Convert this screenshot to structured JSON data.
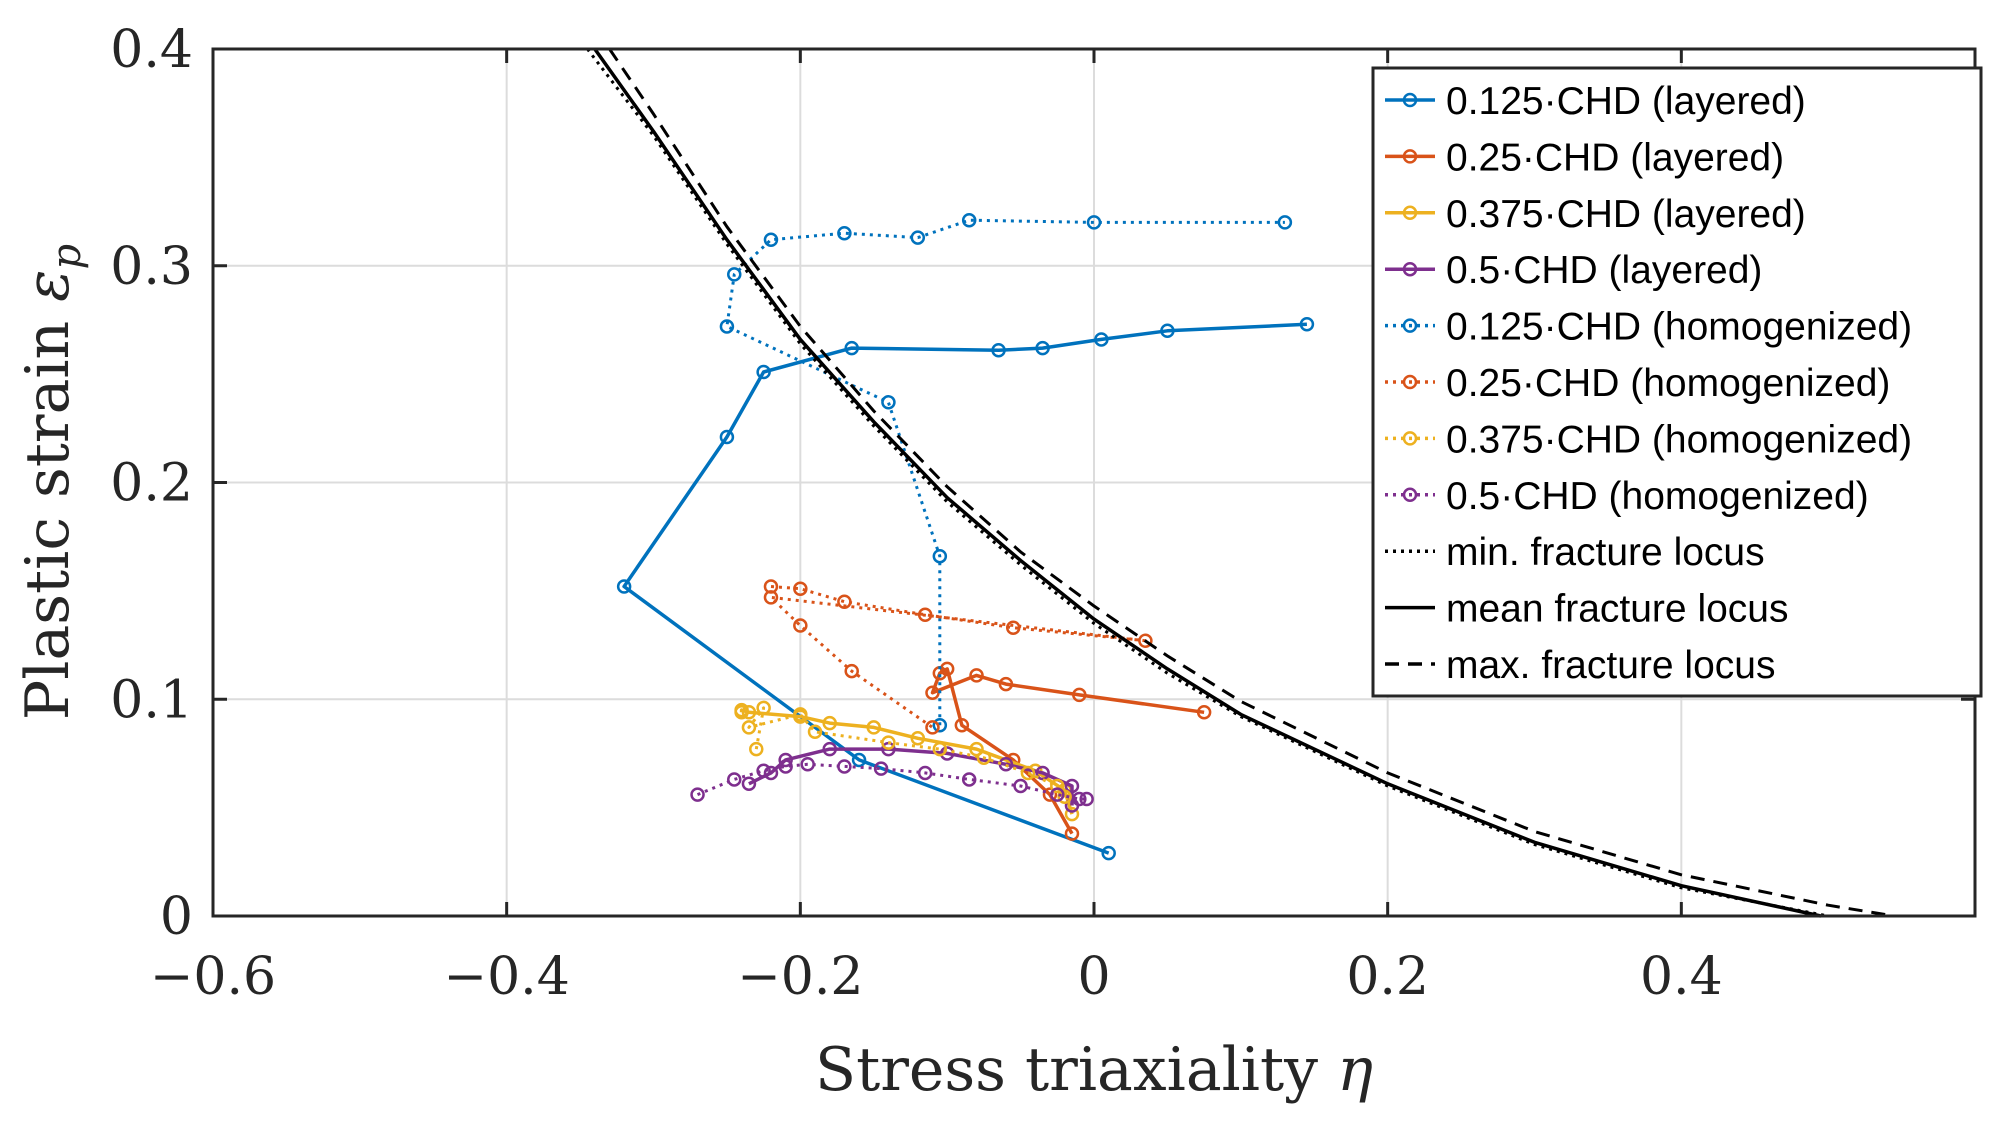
{
  "chart_data": {
    "type": "line",
    "xlabel": "Stress triaxiality",
    "xlabel_symbol": "η",
    "ylabel": "Plastic strain",
    "ylabel_symbol": "ε",
    "ylabel_subscript": "p",
    "xlim": [
      -0.6,
      0.6
    ],
    "ylim": [
      0,
      0.4
    ],
    "xticks": [
      -0.6,
      -0.4,
      -0.2,
      0,
      0.2,
      0.4
    ],
    "xtick_labels": [
      "−0.6",
      "−0.4",
      "−0.2",
      "0",
      "0.2",
      "0.4"
    ],
    "yticks": [
      0,
      0.1,
      0.2,
      0.3,
      0.4
    ],
    "ytick_labels": [
      "0",
      "0.1",
      "0.2",
      "0.3",
      "0.4"
    ],
    "grid": true,
    "legend_position": "top-right",
    "colors": {
      "blue": "#0072BD",
      "orange": "#D95319",
      "yellow": "#EDB120",
      "purple": "#7E2F8E",
      "black": "#000000",
      "grid": "#dcdcdc",
      "axis": "#262626"
    },
    "series": [
      {
        "name": "0.125·CHD (layered)",
        "color": "#0072BD",
        "style": "solid",
        "marker": "circle",
        "x": [
          0.01,
          -0.16,
          -0.32,
          -0.25,
          -0.225,
          -0.165,
          -0.065,
          -0.035,
          0.005,
          0.05,
          0.145
        ],
        "y": [
          0.029,
          0.072,
          0.152,
          0.221,
          0.251,
          0.262,
          0.261,
          0.262,
          0.266,
          0.27,
          0.273
        ]
      },
      {
        "name": "0.25·CHD (layered)",
        "color": "#D95319",
        "style": "solid",
        "marker": "circle",
        "x": [
          -0.015,
          -0.03,
          -0.055,
          -0.09,
          -0.1,
          -0.105,
          -0.11,
          -0.08,
          -0.06,
          -0.01,
          0.075
        ],
        "y": [
          0.038,
          0.056,
          0.072,
          0.088,
          0.114,
          0.112,
          0.103,
          0.111,
          0.107,
          0.102,
          0.094
        ]
      },
      {
        "name": "0.375·CHD (layered)",
        "color": "#EDB120",
        "style": "solid",
        "marker": "circle",
        "x": [
          -0.015,
          -0.02,
          -0.04,
          -0.08,
          -0.12,
          -0.15,
          -0.18,
          -0.2,
          -0.235,
          -0.24,
          -0.24
        ],
        "y": [
          0.047,
          0.058,
          0.067,
          0.077,
          0.082,
          0.087,
          0.089,
          0.092,
          0.094,
          0.095,
          0.094
        ]
      },
      {
        "name": "0.5·CHD (layered)",
        "color": "#7E2F8E",
        "style": "solid",
        "marker": "circle",
        "x": [
          -0.015,
          -0.015,
          -0.035,
          -0.06,
          -0.1,
          -0.14,
          -0.18,
          -0.21,
          -0.22,
          -0.235
        ],
        "y": [
          0.051,
          0.06,
          0.066,
          0.07,
          0.075,
          0.077,
          0.077,
          0.072,
          0.066,
          0.061
        ]
      },
      {
        "name": "0.125·CHD (homogenized)",
        "color": "#0072BD",
        "style": "dotted",
        "marker": "circle",
        "x": [
          -0.105,
          -0.105,
          -0.14,
          -0.25,
          -0.245,
          -0.22,
          -0.17,
          -0.12,
          -0.085,
          0.0,
          0.13
        ],
        "y": [
          0.088,
          0.166,
          0.237,
          0.272,
          0.296,
          0.312,
          0.315,
          0.313,
          0.321,
          0.32,
          0.32
        ]
      },
      {
        "name": "0.25·CHD (homogenized)",
        "color": "#D95319",
        "style": "dotted",
        "marker": "circle",
        "x": [
          -0.22,
          -0.2,
          -0.17,
          -0.115,
          -0.055,
          0.035,
          -0.22,
          -0.2,
          -0.165,
          -0.11
        ],
        "y": [
          0.152,
          0.151,
          0.145,
          0.139,
          0.133,
          0.127,
          0.147,
          0.134,
          0.113,
          0.087
        ]
      },
      {
        "name": "0.375·CHD (homogenized)",
        "color": "#EDB120",
        "style": "dotted",
        "marker": "circle",
        "x": [
          -0.23,
          -0.225,
          -0.235,
          -0.2,
          -0.19,
          -0.14,
          -0.105,
          -0.075,
          -0.045,
          -0.025,
          -0.02
        ],
        "y": [
          0.077,
          0.096,
          0.087,
          0.093,
          0.085,
          0.08,
          0.077,
          0.073,
          0.066,
          0.06,
          0.055
        ]
      },
      {
        "name": "0.5·CHD (homogenized)",
        "color": "#7E2F8E",
        "style": "dotted",
        "marker": "circle",
        "x": [
          -0.27,
          -0.245,
          -0.225,
          -0.21,
          -0.195,
          -0.17,
          -0.145,
          -0.115,
          -0.085,
          -0.05,
          -0.025,
          -0.01,
          -0.005
        ],
        "y": [
          0.056,
          0.063,
          0.067,
          0.069,
          0.07,
          0.069,
          0.068,
          0.066,
          0.063,
          0.06,
          0.056,
          0.054,
          0.054
        ]
      },
      {
        "name": "min. fracture locus",
        "color": "#000000",
        "style": "dotted",
        "marker": "none",
        "x": [
          -0.345,
          -0.3,
          -0.25,
          -0.2,
          -0.15,
          -0.1,
          -0.05,
          0.0,
          0.05,
          0.1,
          0.2,
          0.3,
          0.4,
          0.5
        ],
        "y": [
          0.4,
          0.36,
          0.31,
          0.264,
          0.226,
          0.191,
          0.162,
          0.135,
          0.112,
          0.092,
          0.06,
          0.033,
          0.013,
          0.0
        ]
      },
      {
        "name": "mean fracture locus",
        "color": "#000000",
        "style": "solid",
        "marker": "none",
        "x": [
          -0.34,
          -0.3,
          -0.25,
          -0.2,
          -0.15,
          -0.1,
          -0.05,
          0.0,
          0.05,
          0.1,
          0.2,
          0.3,
          0.4,
          0.495
        ],
        "y": [
          0.4,
          0.362,
          0.312,
          0.266,
          0.228,
          0.193,
          0.164,
          0.137,
          0.114,
          0.093,
          0.061,
          0.034,
          0.014,
          0.0
        ]
      },
      {
        "name": "max. fracture locus",
        "color": "#000000",
        "style": "dashed",
        "marker": "none",
        "x": [
          -0.33,
          -0.3,
          -0.25,
          -0.2,
          -0.15,
          -0.1,
          -0.05,
          0.0,
          0.05,
          0.1,
          0.2,
          0.3,
          0.4,
          0.5,
          0.545
        ],
        "y": [
          0.4,
          0.37,
          0.318,
          0.272,
          0.233,
          0.198,
          0.168,
          0.143,
          0.12,
          0.099,
          0.066,
          0.039,
          0.019,
          0.005,
          0.0
        ]
      }
    ]
  }
}
